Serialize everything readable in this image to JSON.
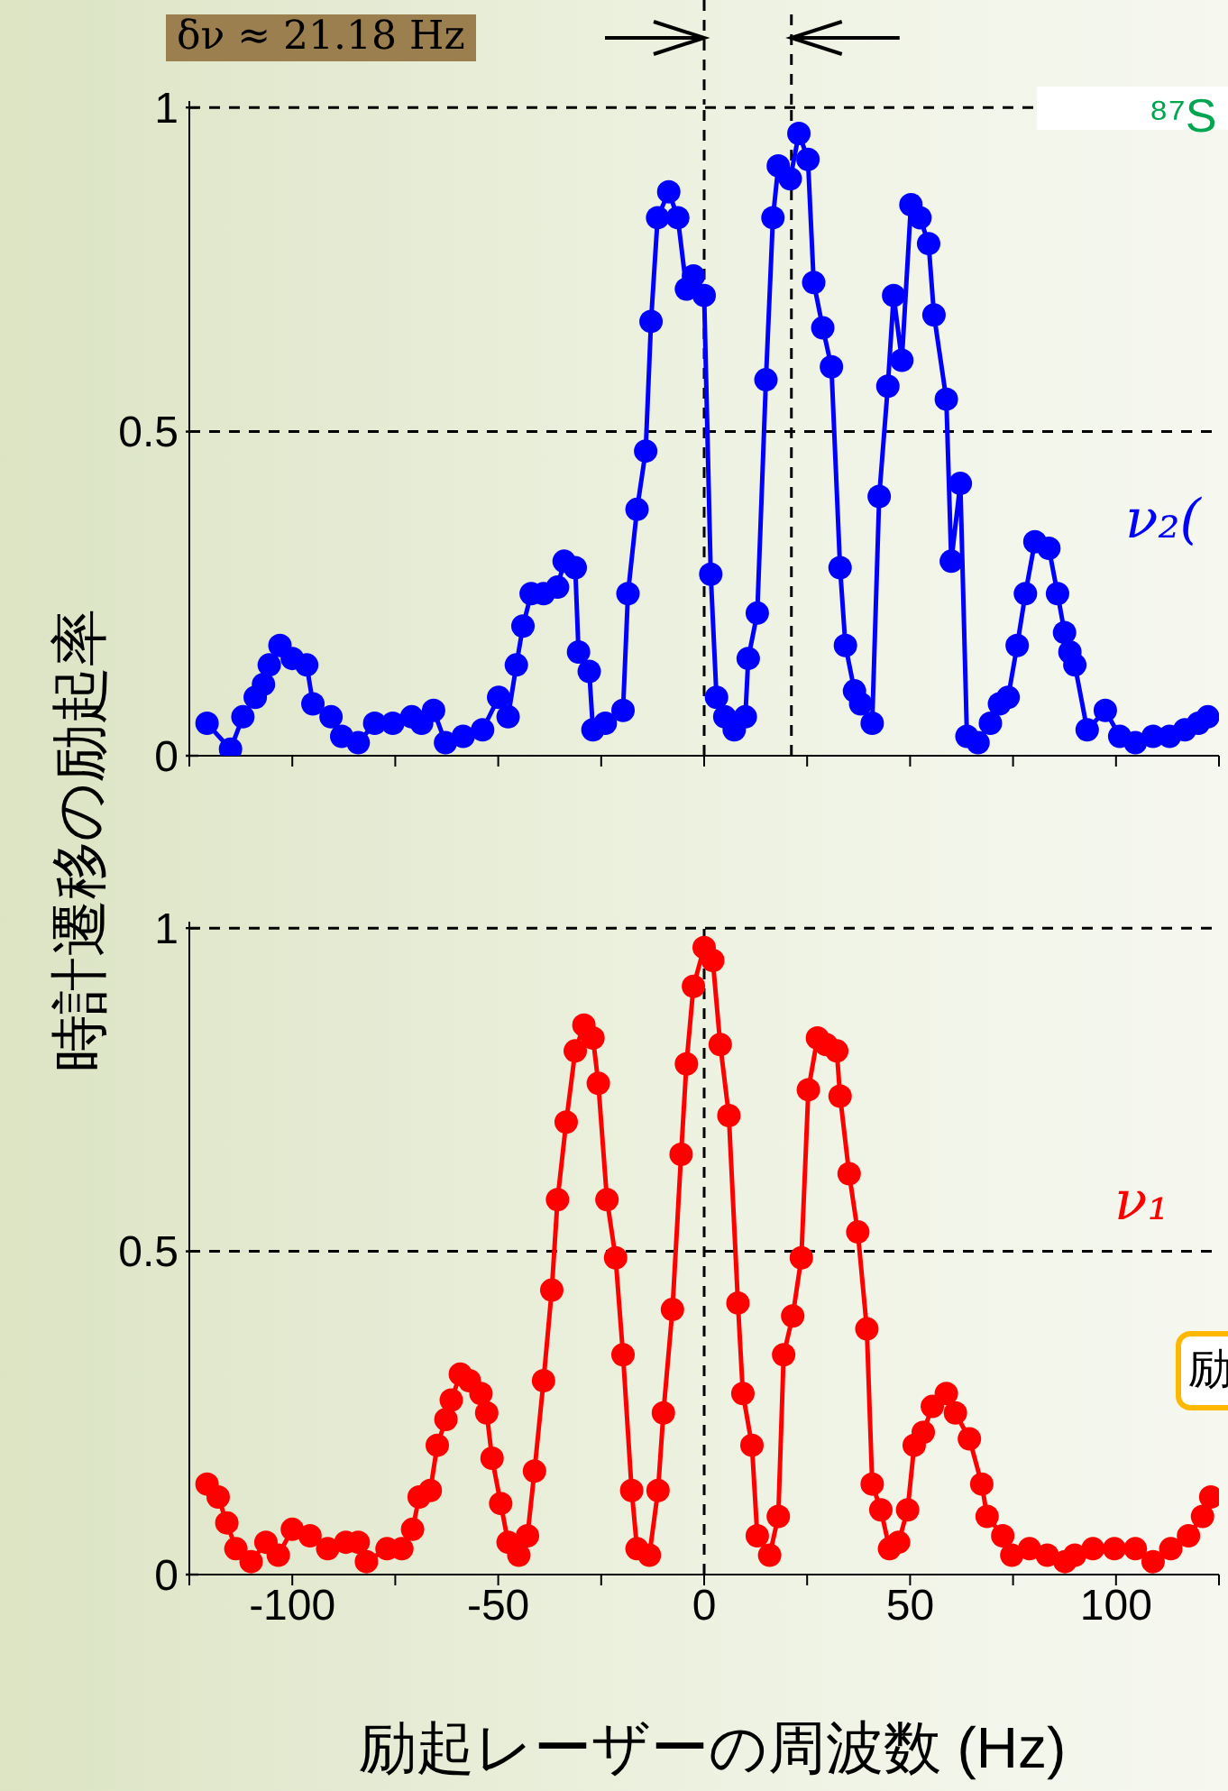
{
  "chart_data": [
    {
      "type": "line",
      "ylabel": "時計遷移の励起率",
      "marker": "circle",
      "line_style": "solid",
      "tick_labels": "y",
      "annotations": [
        "δν ≈ 21.18 Hz",
        "⁸⁷S",
        "ν₂("
      ],
      "xlim": [
        -125,
        125
      ],
      "xticks": [
        {
          "value": -125,
          "label": null
        },
        {
          "value": -100,
          "label": null
        },
        {
          "value": -75,
          "label": null
        },
        {
          "value": -50,
          "label": null
        },
        {
          "value": -25,
          "label": null
        },
        {
          "value": 0,
          "label": null
        },
        {
          "value": 25,
          "label": null
        },
        {
          "value": 50,
          "label": null
        },
        {
          "value": 75,
          "label": null
        },
        {
          "value": 100,
          "label": null
        },
        {
          "value": 125,
          "label": null
        }
      ],
      "ylim": [
        0,
        1.01
      ],
      "yticks": [
        0,
        0.5,
        1
      ],
      "ref_lines": [
        {
          "axis": "x",
          "value": 0,
          "color": "#000000",
          "line_style": "dashed"
        },
        {
          "axis": "x",
          "value": 21.18,
          "color": "#000000",
          "line_style": "dashed"
        },
        {
          "axis": "y",
          "value": 0.5,
          "color": "#000000",
          "line_style": "dashed"
        },
        {
          "axis": "y",
          "value": 1,
          "color": "#000000",
          "line_style": "dashed"
        }
      ],
      "x": [
        -120.7,
        -115,
        -112,
        -109,
        -107,
        -105.6,
        -103,
        -100,
        -96.5,
        -95,
        -90.6,
        -88,
        -84,
        -80,
        -75.6,
        -71,
        -68.6,
        -65.7,
        -62.8,
        -58.5,
        -53.8,
        -49.9,
        -47.6,
        -45.6,
        -44,
        -42,
        -39,
        -35.6,
        -34,
        -31.3,
        -30.5,
        -27.9,
        -27,
        -24,
        -19.7,
        -18.5,
        -16.3,
        -14.2,
        -12.9,
        -11.3,
        -8.6,
        -6.4,
        -4.3,
        -2.6,
        0,
        1.6,
        3,
        5,
        7.3,
        10,
        10.7,
        12.9,
        15,
        16.7,
        18,
        20.9,
        23,
        25.2,
        26.6,
        28.8,
        30.9,
        33,
        34.3,
        36.5,
        38,
        40.8,
        42.5,
        44.6,
        46,
        48,
        50.2,
        52.4,
        54.5,
        55.8,
        58.8,
        60,
        62.2,
        63.8,
        66.5,
        69.5,
        71.7,
        73.8,
        76,
        78,
        80.3,
        83.7,
        85.8,
        87.5,
        88.8,
        90,
        93,
        97.4,
        100.9,
        104.7,
        109,
        113,
        116.7,
        120,
        122.3
      ],
      "series": [
        {
          "color": "#0000ff",
          "values": [
            0.05,
            0.01,
            0.06,
            0.09,
            0.11,
            0.14,
            0.17,
            0.15,
            0.14,
            0.08,
            0.06,
            0.03,
            0.02,
            0.05,
            0.05,
            0.06,
            0.05,
            0.07,
            0.02,
            0.03,
            0.04,
            0.09,
            0.06,
            0.14,
            0.2,
            0.25,
            0.25,
            0.26,
            0.3,
            0.29,
            0.16,
            0.13,
            0.04,
            0.05,
            0.07,
            0.25,
            0.38,
            0.47,
            0.67,
            0.83,
            0.87,
            0.83,
            0.72,
            0.74,
            0.71,
            0.28,
            0.09,
            0.06,
            0.04,
            0.06,
            0.15,
            0.22,
            0.58,
            0.83,
            0.91,
            0.89,
            0.96,
            0.92,
            0.73,
            0.66,
            0.6,
            0.29,
            0.17,
            0.1,
            0.08,
            0.05,
            0.4,
            0.57,
            0.71,
            0.61,
            0.85,
            0.83,
            0.79,
            0.68,
            0.55,
            0.3,
            0.42,
            0.03,
            0.02,
            0.05,
            0.08,
            0.09,
            0.17,
            0.25,
            0.33,
            0.32,
            0.25,
            0.19,
            0.16,
            0.14,
            0.04,
            0.07,
            0.03,
            0.02,
            0.03,
            0.03,
            0.04,
            0.05,
            0.06
          ]
        }
      ]
    },
    {
      "type": "line",
      "xlabel": "励起レーザーの周波数 (Hz)",
      "marker": "circle",
      "line_style": "solid",
      "annotations": [
        "ν₁",
        "励"
      ],
      "xlim": [
        -125,
        125
      ],
      "xticks": [
        {
          "value": -125,
          "label": null
        },
        -100,
        {
          "value": -75,
          "label": null
        },
        -50,
        {
          "value": -25,
          "label": null
        },
        0,
        {
          "value": 25,
          "label": null
        },
        50,
        {
          "value": 75,
          "label": null
        },
        100,
        {
          "value": 125,
          "label": null
        }
      ],
      "ylim": [
        0,
        1.01
      ],
      "yticks": [
        0,
        0.5,
        1
      ],
      "ref_lines": [
        {
          "axis": "x",
          "value": 0,
          "color": "#000000",
          "line_style": "dashed"
        },
        {
          "axis": "y",
          "value": 0.5,
          "color": "#000000",
          "line_style": "dashed"
        },
        {
          "axis": "y",
          "value": 1,
          "color": "#000000",
          "line_style": "dashed"
        }
      ],
      "x": [
        -120.7,
        -118,
        -115.9,
        -113.7,
        -110,
        -106.4,
        -103.4,
        -100,
        -95.7,
        -91.4,
        -87,
        -84,
        -82,
        -77,
        -73.4,
        -70.8,
        -69.2,
        -66.5,
        -64.8,
        -62.7,
        -61.4,
        -59.2,
        -57,
        -54.2,
        -52.8,
        -51.5,
        -49.4,
        -47.6,
        -45,
        -42.9,
        -41.2,
        -39,
        -37,
        -35.6,
        -33.5,
        -31.3,
        -29.2,
        -27,
        -25.7,
        -23.6,
        -21.5,
        -19.7,
        -17.6,
        -16.3,
        -13.3,
        -11.2,
        -9.9,
        -7.7,
        -5.6,
        -4.3,
        -2.6,
        0,
        2.1,
        3.9,
        6,
        8.2,
        9.4,
        11.6,
        12.9,
        15.9,
        18,
        19.3,
        21.5,
        23.6,
        25.3,
        27.5,
        29.6,
        32.2,
        33,
        35.2,
        37.3,
        39.5,
        40.8,
        42.9,
        45,
        47.2,
        49.4,
        51,
        53.2,
        55.4,
        58.8,
        61,
        64.4,
        67.4,
        68.7,
        72.5,
        74.7,
        79,
        83.3,
        87.6,
        90,
        94.4,
        99.6,
        104.7,
        109,
        113.3,
        117.6,
        121,
        123
      ],
      "series": [
        {
          "color": "#ff0000",
          "values": [
            0.14,
            0.12,
            0.08,
            0.04,
            0.02,
            0.05,
            0.03,
            0.07,
            0.06,
            0.04,
            0.05,
            0.05,
            0.02,
            0.04,
            0.04,
            0.07,
            0.12,
            0.13,
            0.2,
            0.24,
            0.27,
            0.31,
            0.3,
            0.28,
            0.25,
            0.18,
            0.11,
            0.05,
            0.03,
            0.06,
            0.16,
            0.3,
            0.44,
            0.58,
            0.7,
            0.81,
            0.85,
            0.83,
            0.76,
            0.58,
            0.49,
            0.34,
            0.13,
            0.04,
            0.03,
            0.13,
            0.25,
            0.41,
            0.65,
            0.79,
            0.91,
            0.97,
            0.95,
            0.82,
            0.71,
            0.42,
            0.28,
            0.2,
            0.06,
            0.03,
            0.09,
            0.34,
            0.4,
            0.49,
            0.75,
            0.83,
            0.82,
            0.81,
            0.74,
            0.62,
            0.53,
            0.38,
            0.14,
            0.1,
            0.04,
            0.05,
            0.1,
            0.2,
            0.22,
            0.26,
            0.28,
            0.25,
            0.21,
            0.14,
            0.09,
            0.06,
            0.03,
            0.04,
            0.03,
            0.02,
            0.03,
            0.04,
            0.04,
            0.04,
            0.02,
            0.04,
            0.06,
            0.09,
            0.12
          ]
        }
      ]
    }
  ]
}
